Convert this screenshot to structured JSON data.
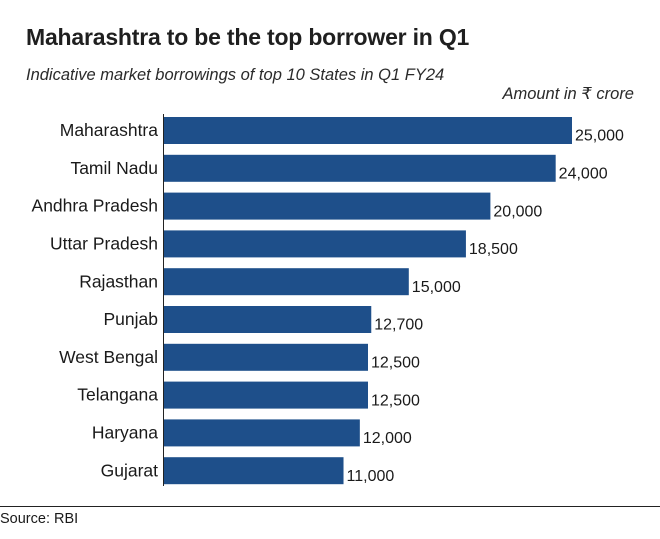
{
  "chart_data": {
    "type": "bar",
    "orientation": "horizontal",
    "title": "Maharashtra to be the top borrower in Q1",
    "subtitle": "Indicative market borrowings of top 10 States in Q1 FY24",
    "unit_label": "Amount in ₹ crore",
    "categories": [
      "Maharashtra",
      "Tamil Nadu",
      "Andhra Pradesh",
      "Uttar Pradesh",
      "Rajasthan",
      "Punjab",
      "West Bengal",
      "Telangana",
      "Haryana",
      "Gujarat"
    ],
    "values": [
      25000,
      24000,
      20000,
      18500,
      15000,
      12700,
      12500,
      12500,
      12000,
      11000
    ],
    "value_labels": [
      "25,000",
      "24,000",
      "20,000",
      "18,500",
      "15,000",
      "12,700",
      "12,500",
      "12,500",
      "12,000",
      "11,000"
    ],
    "xlim": [
      0,
      25000
    ],
    "bar_color": "#1e4f8a",
    "grid": false,
    "legend": "none"
  },
  "footer": {
    "source": "Source: RBI"
  }
}
